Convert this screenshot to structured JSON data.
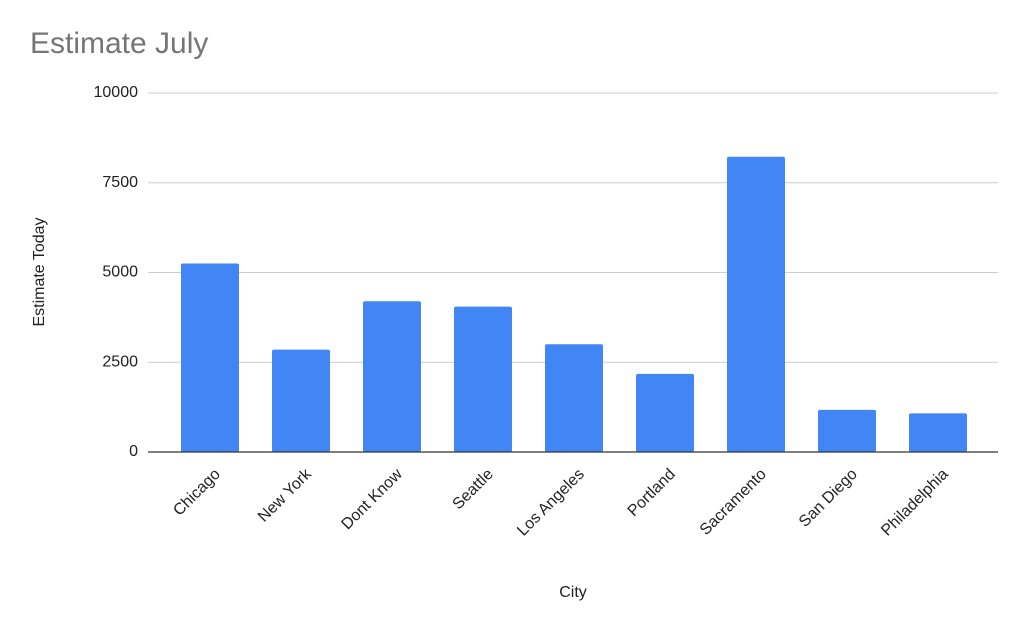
{
  "chart_data": {
    "type": "bar",
    "title": "Estimate July",
    "x_label": "City",
    "y_label": "Estimate Today",
    "categories": [
      "Chicago",
      "New York",
      "Dont Know",
      "Seattle",
      "Los Angeles",
      "Portland",
      "Sacramento",
      "San Diego",
      "Philadelphia"
    ],
    "values": [
      5250,
      2850,
      4200,
      4050,
      3000,
      2175,
      8225,
      1175,
      1075
    ],
    "color": "#4285f4",
    "ylim": [
      0,
      10000
    ],
    "yticks": [
      0,
      2500,
      5000,
      7500,
      10000
    ],
    "grid": true
  }
}
